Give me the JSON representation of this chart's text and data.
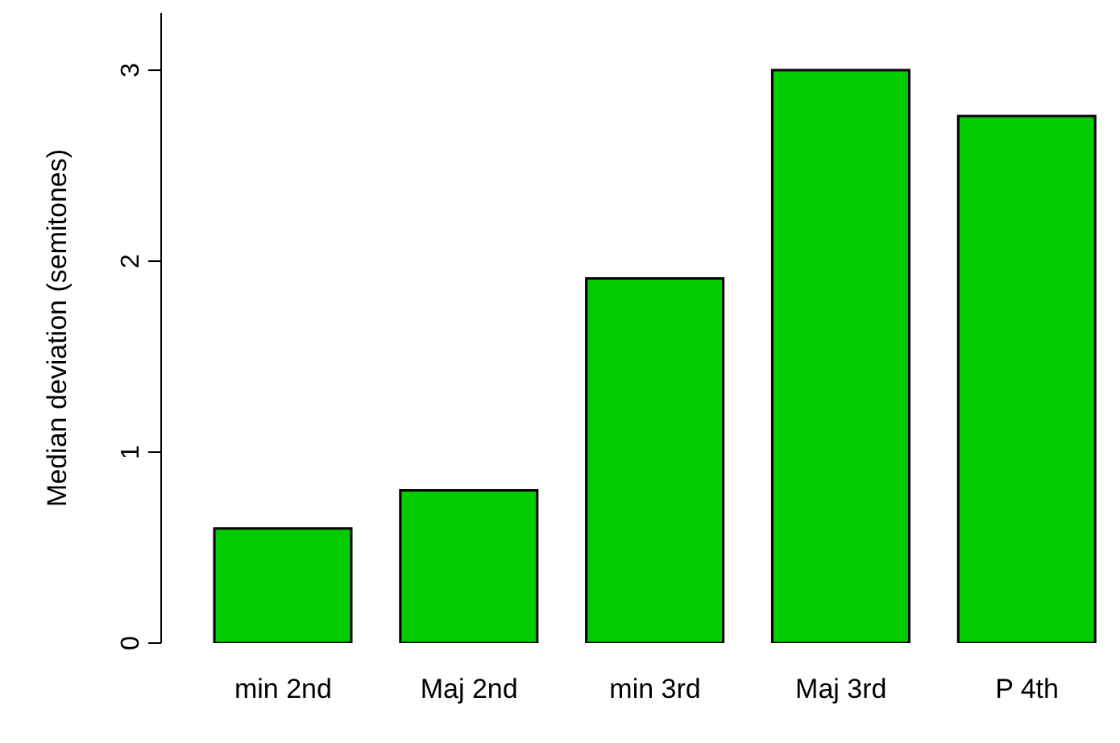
{
  "chart_data": {
    "type": "bar",
    "ylabel": "Median deviation (semitones)",
    "categories": [
      "min 2nd",
      "Maj 2nd",
      "min 3rd",
      "Maj 3rd",
      "P 4th"
    ],
    "values": [
      0.6,
      0.8,
      1.91,
      3.0,
      2.76
    ],
    "color": "#00cc00",
    "ylim": [
      0,
      3.3
    ],
    "yticks": [
      0,
      1,
      2,
      3
    ],
    "grid": false
  }
}
